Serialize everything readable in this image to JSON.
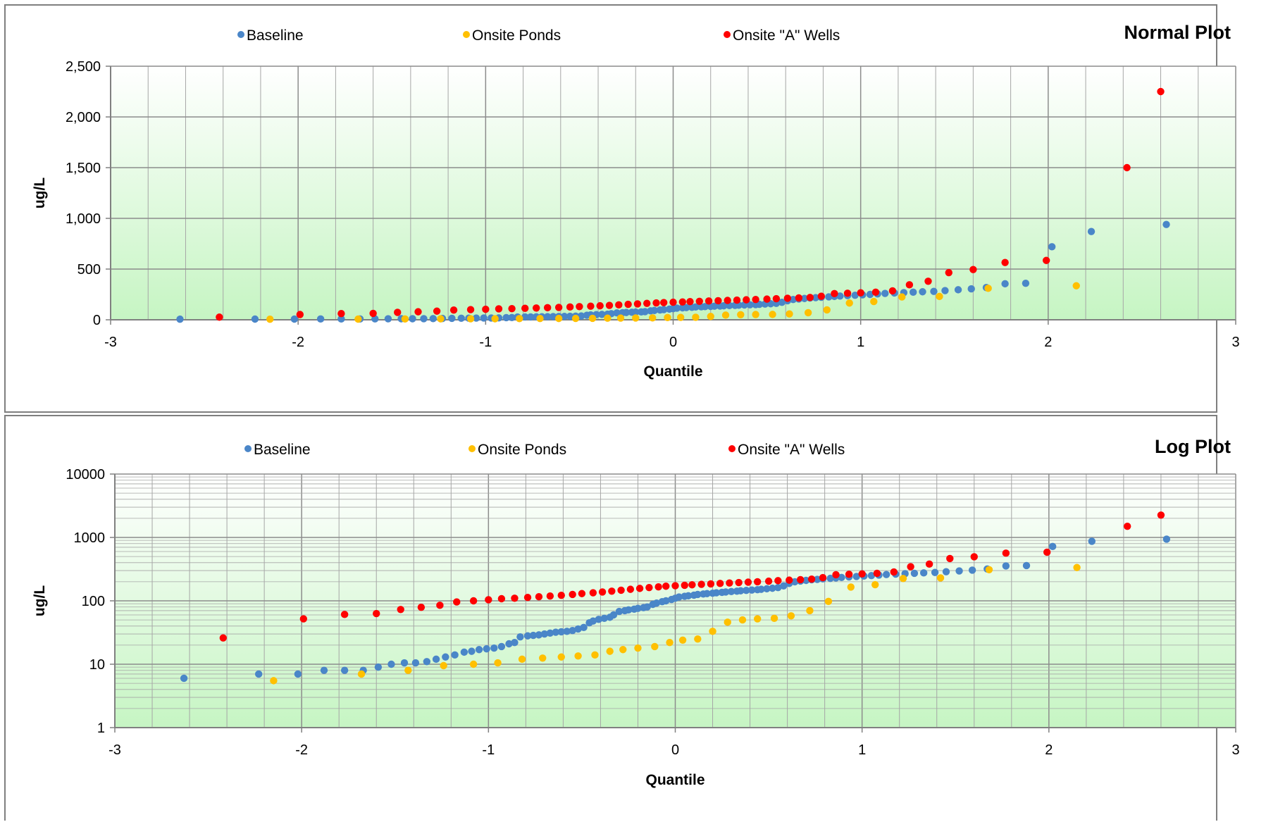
{
  "colors": {
    "baseline": "#4a86c8",
    "ponds": "#ffc000",
    "wells": "#ff0000",
    "grid_major": "#8c8c8c",
    "grid_minor": "#a6a6a6",
    "bg_top": "#ffffff",
    "bg_bottom": "#c6f5c3"
  },
  "chart_data": [
    {
      "type": "scatter",
      "title": "Normal Plot",
      "xlabel": "Quantile",
      "ylabel": "ug/L",
      "xlim": [
        -3,
        3
      ],
      "ylim": [
        0,
        2500
      ],
      "x_ticks": [
        -3,
        -2,
        -1,
        0,
        1,
        2,
        3
      ],
      "y_ticks": [
        0,
        500,
        1000,
        1500,
        2000,
        2500
      ],
      "x_tick_labels": [
        "-3",
        "-2",
        "-1",
        "0",
        "1",
        "2",
        "3"
      ],
      "y_tick_labels": [
        "0",
        "500",
        "1,000",
        "1,500",
        "2,000",
        "2,500"
      ],
      "y_scale": "linear",
      "grid": true,
      "legend_position": "top",
      "legend": [
        "Baseline",
        "Onsite Ponds",
        "Onsite \"A\" Wells"
      ]
    },
    {
      "type": "scatter",
      "title": "Log Plot",
      "xlabel": "Quantile",
      "ylabel": "ug/L",
      "xlim": [
        -3,
        3
      ],
      "ylim": [
        1,
        10000
      ],
      "x_ticks": [
        -3,
        -2,
        -1,
        0,
        1,
        2,
        3
      ],
      "y_ticks": [
        1,
        10,
        100,
        1000,
        10000
      ],
      "x_tick_labels": [
        "-3",
        "-2",
        "-1",
        "0",
        "1",
        "2",
        "3"
      ],
      "y_tick_labels": [
        "1",
        "10",
        "100",
        "1000",
        "10000"
      ],
      "y_scale": "log",
      "grid": true,
      "legend_position": "top",
      "legend": [
        "Baseline",
        "Onsite Ponds",
        "Onsite \"A\" Wells"
      ]
    }
  ],
  "series": [
    {
      "name": "Baseline",
      "color": "#4a86c8",
      "points": [
        [
          -2.63,
          6
        ],
        [
          -2.23,
          7
        ],
        [
          -2.02,
          7
        ],
        [
          -1.88,
          8
        ],
        [
          -1.77,
          8
        ],
        [
          -1.67,
          8
        ],
        [
          -1.59,
          9
        ],
        [
          -1.52,
          10
        ],
        [
          -1.45,
          10.5
        ],
        [
          -1.39,
          10.5
        ],
        [
          -1.33,
          11
        ],
        [
          -1.28,
          12
        ],
        [
          -1.23,
          13
        ],
        [
          -1.18,
          14
        ],
        [
          -1.13,
          15.5
        ],
        [
          -1.09,
          16
        ],
        [
          -1.05,
          17
        ],
        [
          -1.01,
          17.5
        ],
        [
          -0.97,
          18
        ],
        [
          -0.93,
          19
        ],
        [
          -0.89,
          21
        ],
        [
          -0.86,
          22
        ],
        [
          -0.83,
          27
        ],
        [
          -0.79,
          28
        ],
        [
          -0.76,
          28.5
        ],
        [
          -0.73,
          29
        ],
        [
          -0.7,
          30
        ],
        [
          -0.67,
          31
        ],
        [
          -0.64,
          32
        ],
        [
          -0.61,
          32.5
        ],
        [
          -0.58,
          33
        ],
        [
          -0.55,
          34
        ],
        [
          -0.52,
          36
        ],
        [
          -0.49,
          38
        ],
        [
          -0.46,
          45
        ],
        [
          -0.44,
          48
        ],
        [
          -0.41,
          51
        ],
        [
          -0.38,
          53
        ],
        [
          -0.35,
          55
        ],
        [
          -0.33,
          60
        ],
        [
          -0.3,
          68
        ],
        [
          -0.27,
          70
        ],
        [
          -0.25,
          72
        ],
        [
          -0.22,
          74
        ],
        [
          -0.2,
          76
        ],
        [
          -0.17,
          78
        ],
        [
          -0.15,
          80
        ],
        [
          -0.12,
          88
        ],
        [
          -0.1,
          92
        ],
        [
          -0.07,
          97
        ],
        [
          -0.05,
          100
        ],
        [
          -0.02,
          105
        ],
        [
          0.0,
          110
        ],
        [
          0.02,
          115
        ],
        [
          0.05,
          118
        ],
        [
          0.07,
          120
        ],
        [
          0.1,
          123
        ],
        [
          0.12,
          126
        ],
        [
          0.15,
          128
        ],
        [
          0.17,
          130
        ],
        [
          0.2,
          132
        ],
        [
          0.22,
          134
        ],
        [
          0.25,
          136
        ],
        [
          0.27,
          138
        ],
        [
          0.3,
          140
        ],
        [
          0.33,
          142
        ],
        [
          0.35,
          144
        ],
        [
          0.38,
          146
        ],
        [
          0.41,
          148
        ],
        [
          0.44,
          150
        ],
        [
          0.46,
          152
        ],
        [
          0.49,
          155
        ],
        [
          0.52,
          158
        ],
        [
          0.55,
          162
        ],
        [
          0.58,
          172
        ],
        [
          0.61,
          188
        ],
        [
          0.64,
          200
        ],
        [
          0.67,
          205
        ],
        [
          0.7,
          210
        ],
        [
          0.73,
          215
        ],
        [
          0.76,
          218
        ],
        [
          0.79,
          222
        ],
        [
          0.83,
          226
        ],
        [
          0.86,
          230
        ],
        [
          0.89,
          234
        ],
        [
          0.93,
          238
        ],
        [
          0.97,
          242
        ],
        [
          1.01,
          246
        ],
        [
          1.05,
          250
        ],
        [
          1.09,
          255
        ],
        [
          1.13,
          260
        ],
        [
          1.18,
          264
        ],
        [
          1.23,
          268
        ],
        [
          1.28,
          272
        ],
        [
          1.33,
          276
        ],
        [
          1.39,
          280
        ],
        [
          1.45,
          288
        ],
        [
          1.52,
          296
        ],
        [
          1.59,
          305
        ],
        [
          1.67,
          318
        ],
        [
          1.77,
          355
        ],
        [
          1.88,
          360
        ],
        [
          2.02,
          720
        ],
        [
          2.23,
          870
        ],
        [
          2.63,
          940
        ]
      ]
    },
    {
      "name": "Onsite Ponds",
      "color": "#ffc000",
      "points": [
        [
          -2.15,
          5.5
        ],
        [
          -1.68,
          7
        ],
        [
          -1.43,
          8
        ],
        [
          -1.24,
          9.5
        ],
        [
          -1.08,
          10
        ],
        [
          -0.95,
          10.5
        ],
        [
          -0.82,
          12
        ],
        [
          -0.71,
          12.5
        ],
        [
          -0.61,
          13
        ],
        [
          -0.52,
          13.5
        ],
        [
          -0.43,
          14
        ],
        [
          -0.35,
          16
        ],
        [
          -0.28,
          17
        ],
        [
          -0.2,
          18
        ],
        [
          -0.11,
          19
        ],
        [
          -0.03,
          22
        ],
        [
          0.04,
          24
        ],
        [
          0.12,
          25
        ],
        [
          0.2,
          33
        ],
        [
          0.28,
          46
        ],
        [
          0.36,
          50
        ],
        [
          0.44,
          52
        ],
        [
          0.53,
          53
        ],
        [
          0.62,
          58
        ],
        [
          0.72,
          70
        ],
        [
          0.82,
          98
        ],
        [
          0.94,
          165
        ],
        [
          1.07,
          180
        ],
        [
          1.22,
          225
        ],
        [
          1.42,
          230
        ],
        [
          1.68,
          310
        ],
        [
          2.15,
          335
        ]
      ]
    },
    {
      "name": "Onsite \"A\" Wells",
      "color": "#ff0000",
      "points": [
        [
          -2.42,
          26
        ],
        [
          -1.99,
          52
        ],
        [
          -1.77,
          61
        ],
        [
          -1.6,
          63
        ],
        [
          -1.47,
          73
        ],
        [
          -1.36,
          79
        ],
        [
          -1.26,
          85
        ],
        [
          -1.17,
          96
        ],
        [
          -1.08,
          100
        ],
        [
          -1.0,
          104
        ],
        [
          -0.93,
          108
        ],
        [
          -0.86,
          110
        ],
        [
          -0.79,
          113
        ],
        [
          -0.73,
          116
        ],
        [
          -0.67,
          119
        ],
        [
          -0.61,
          122
        ],
        [
          -0.55,
          126
        ],
        [
          -0.5,
          130
        ],
        [
          -0.44,
          134
        ],
        [
          -0.39,
          138
        ],
        [
          -0.34,
          142
        ],
        [
          -0.29,
          147
        ],
        [
          -0.24,
          152
        ],
        [
          -0.19,
          157
        ],
        [
          -0.14,
          162
        ],
        [
          -0.09,
          166
        ],
        [
          -0.05,
          170
        ],
        [
          0.0,
          173
        ],
        [
          0.05,
          176
        ],
        [
          0.09,
          179
        ],
        [
          0.14,
          182
        ],
        [
          0.19,
          185
        ],
        [
          0.24,
          188
        ],
        [
          0.29,
          191
        ],
        [
          0.34,
          194
        ],
        [
          0.39,
          197
        ],
        [
          0.44,
          200
        ],
        [
          0.5,
          204
        ],
        [
          0.55,
          208
        ],
        [
          0.61,
          212
        ],
        [
          0.67,
          216
        ],
        [
          0.73,
          220
        ],
        [
          0.79,
          232
        ],
        [
          0.86,
          258
        ],
        [
          0.93,
          262
        ],
        [
          1.0,
          266
        ],
        [
          1.08,
          272
        ],
        [
          1.17,
          285
        ],
        [
          1.26,
          345
        ],
        [
          1.36,
          380
        ],
        [
          1.47,
          465
        ],
        [
          1.6,
          495
        ],
        [
          1.77,
          565
        ],
        [
          1.99,
          585
        ],
        [
          2.42,
          1500
        ],
        [
          2.6,
          2250
        ]
      ]
    }
  ]
}
